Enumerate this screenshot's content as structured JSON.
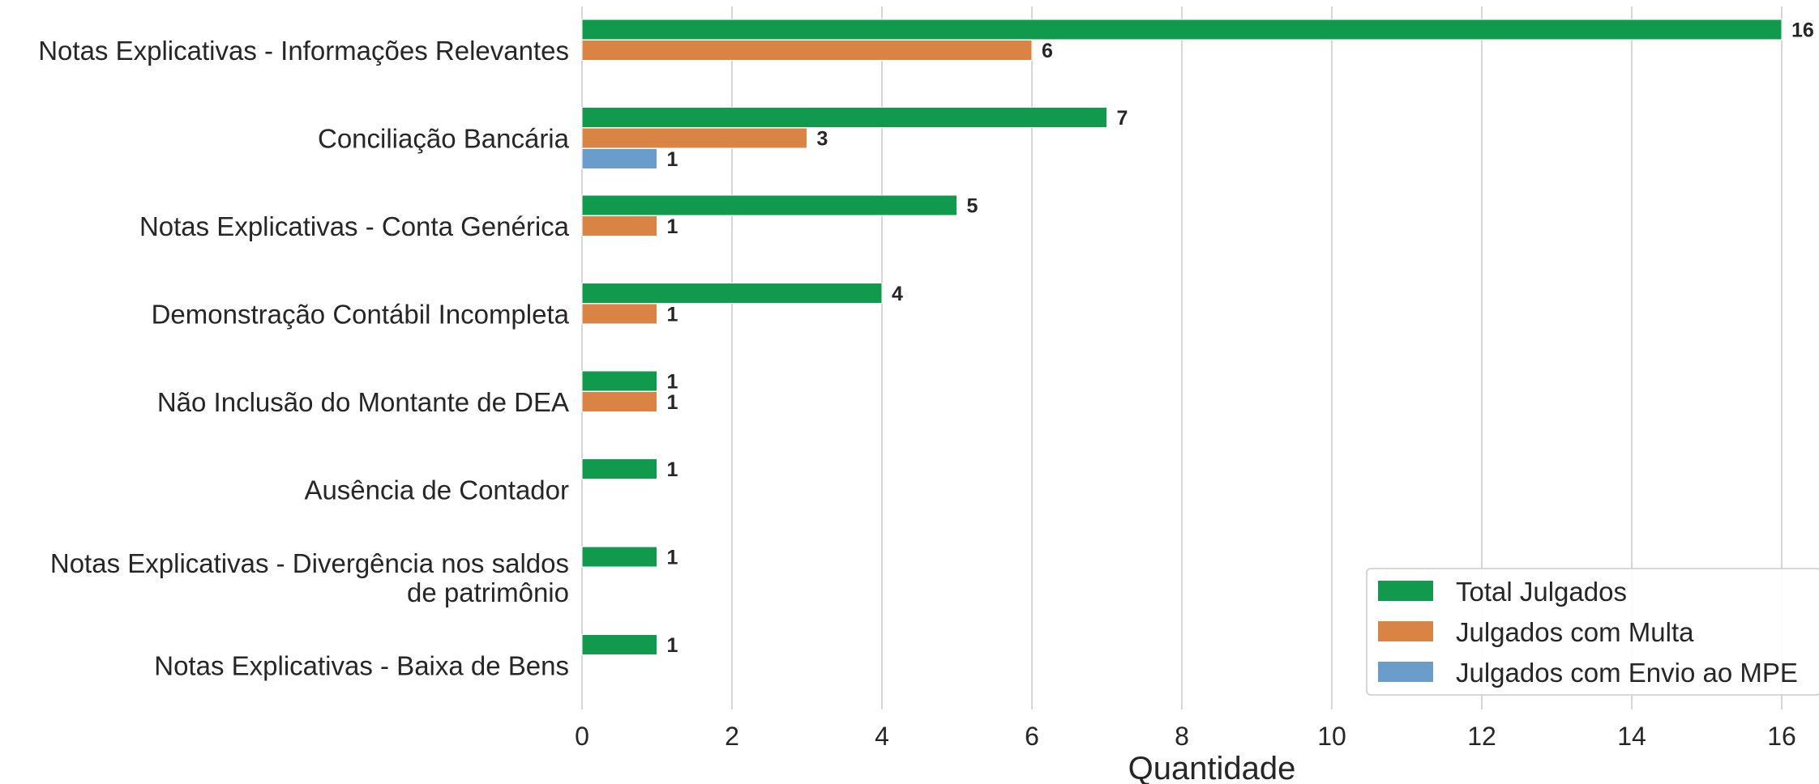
{
  "chart_data": {
    "type": "bar",
    "orientation": "horizontal",
    "title": "",
    "xlabel": "Quantidade",
    "ylabel": "",
    "xlim": [
      0,
      16.4
    ],
    "xticks": [
      0,
      2,
      4,
      6,
      8,
      10,
      12,
      14,
      16
    ],
    "grid": "vertical",
    "legend_position": "bottom-right",
    "categories": [
      [
        "Notas Explicativas - Informações Relevantes"
      ],
      [
        "Conciliação Bancária"
      ],
      [
        "Notas Explicativas - Conta Genérica"
      ],
      [
        "Demonstração Contábil Incompleta"
      ],
      [
        "Não Inclusão do Montante de DEA"
      ],
      [
        "Ausência de Contador"
      ],
      [
        "Notas Explicativas - Divergência nos saldos",
        "de patrimônio"
      ],
      [
        "Notas Explicativas - Baixa de Bens"
      ]
    ],
    "series": [
      {
        "name": "Total Julgados",
        "color": "#119a4e",
        "values": [
          16,
          7,
          5,
          4,
          1,
          1,
          1,
          1
        ]
      },
      {
        "name": "Julgados com Multa",
        "color": "#d98445",
        "values": [
          6,
          3,
          1,
          1,
          1,
          null,
          null,
          null
        ]
      },
      {
        "name": "Julgados com Envio ao MPE",
        "color": "#6b9dcb",
        "values": [
          null,
          1,
          null,
          null,
          null,
          null,
          null,
          null
        ]
      }
    ]
  }
}
